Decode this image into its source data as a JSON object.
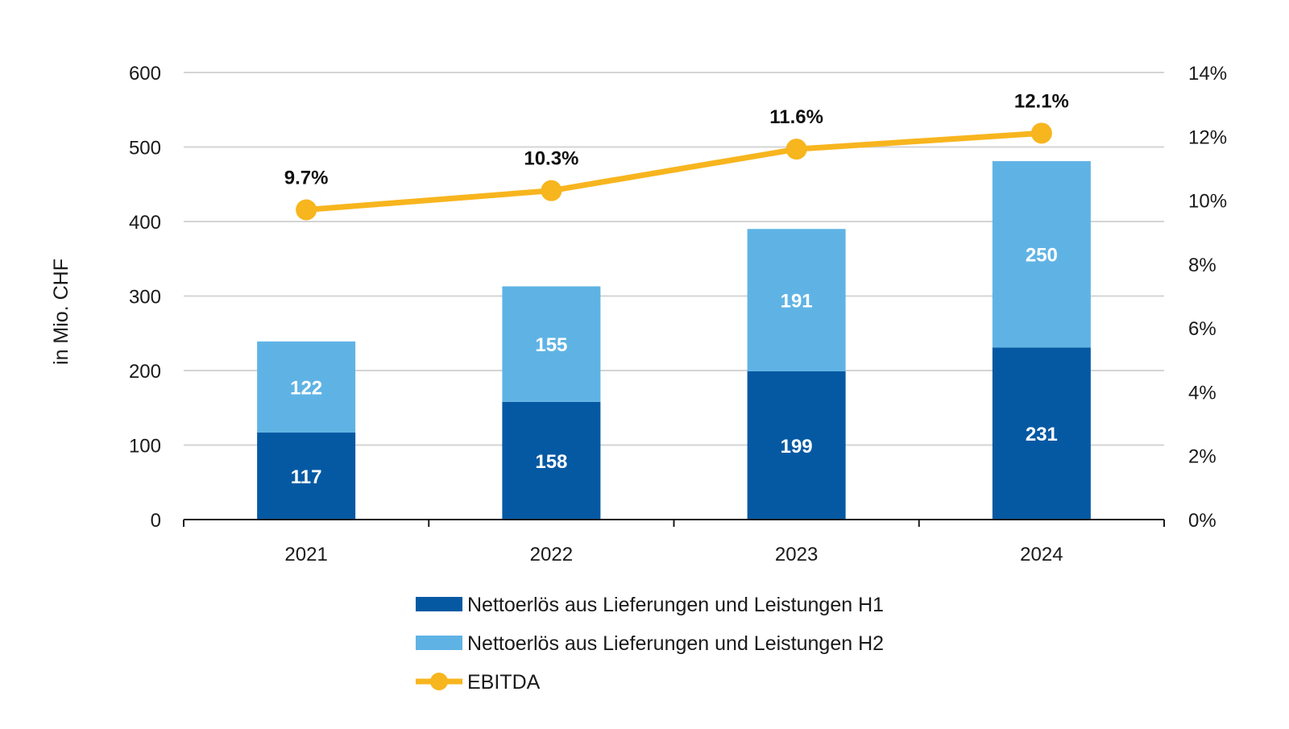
{
  "chart_data": {
    "type": "bar",
    "stacked": true,
    "categories": [
      "2021",
      "2022",
      "2023",
      "2024"
    ],
    "series": [
      {
        "name": "Nettoerlös aus Lieferungen und Leistungen H1",
        "axis": "left",
        "values": [
          117,
          158,
          199,
          231
        ],
        "labels": [
          "117",
          "158",
          "199",
          "231"
        ],
        "color": "#0559A3"
      },
      {
        "name": "Nettoerlös aus Lieferungen und Leistungen H2",
        "axis": "left",
        "values": [
          122,
          155,
          191,
          250
        ],
        "labels": [
          "122",
          "155",
          "191",
          "250"
        ],
        "color": "#5FB3E4"
      },
      {
        "name": "EBITDA",
        "type": "line",
        "axis": "right",
        "values": [
          9.7,
          10.3,
          11.6,
          12.1
        ],
        "labels": [
          "9.7%",
          "10.3%",
          "11.6%",
          "12.1%"
        ],
        "color": "#F7B51E"
      }
    ],
    "ylabel": "in Mio. CHF",
    "ylim": [
      0,
      600
    ],
    "yticks": [
      "0",
      "100",
      "200",
      "300",
      "400",
      "500",
      "600"
    ],
    "y2lim": [
      0,
      14
    ],
    "y2ticks": [
      "0%",
      "2%",
      "4%",
      "6%",
      "8%",
      "10%",
      "12%",
      "14%"
    ],
    "grid": true,
    "legend": "bottom"
  }
}
